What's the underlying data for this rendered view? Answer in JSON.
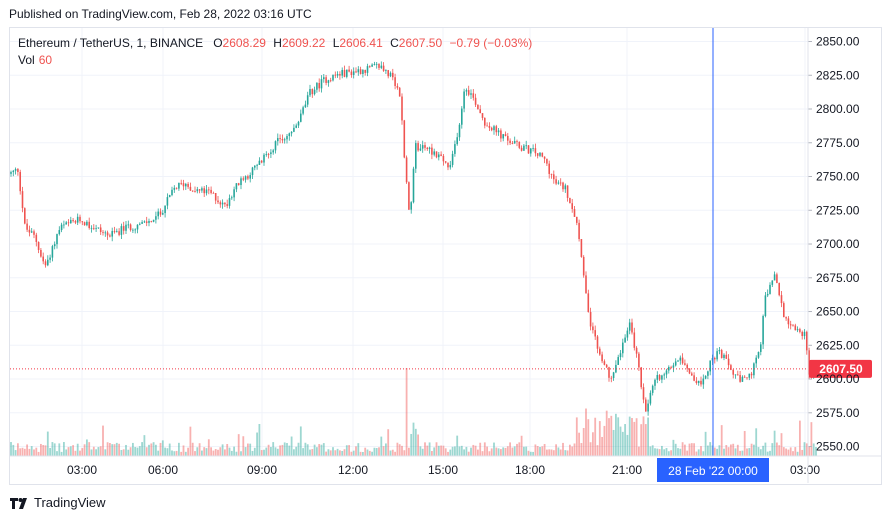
{
  "published": "Published on TradingView.com, Feb 28, 2022 03:16 UTC",
  "legend": {
    "symbol": "Ethereum / TetherUS, 1, BINANCE",
    "open_label": "O",
    "open": "2608.29",
    "high_label": "H",
    "high": "2609.22",
    "low_label": "L",
    "low": "2606.41",
    "close_label": "C",
    "close": "2607.50",
    "change": "−0.79 (−0.03%)",
    "vol_label": "Vol",
    "vol": "60"
  },
  "brand": {
    "name": "TradingView",
    "icon": "tradingview-logo-icon"
  },
  "colors": {
    "up": "#26a69a",
    "down": "#ef5350",
    "price_tag": "#f23645",
    "crosshair_tag": "#2962ff",
    "crosshair": "#2962ff"
  },
  "chart_data": {
    "type": "candlestick",
    "title": "",
    "xlabel": "",
    "ylabel": "",
    "y_ticks": [
      "2850.00",
      "2825.00",
      "2800.00",
      "2775.00",
      "2750.00",
      "2725.00",
      "2700.00",
      "2675.00",
      "2650.00",
      "2625.00",
      "2600.00",
      "2575.00",
      "2550.00"
    ],
    "ylim": [
      2543,
      2860
    ],
    "x_ticks": [
      "03:00",
      "06:00",
      "09:00",
      "12:00",
      "15:00",
      "18:00",
      "21:00",
      "03:00"
    ],
    "crosshair_label": "28 Feb '22   00:00",
    "last_price": 2607.5,
    "last_price_label": "2607.50",
    "grid": true,
    "anchors": [
      [
        0,
        2752
      ],
      [
        8,
        2755
      ],
      [
        15,
        2712
      ],
      [
        25,
        2705
      ],
      [
        35,
        2683
      ],
      [
        50,
        2712
      ],
      [
        70,
        2718
      ],
      [
        85,
        2712
      ],
      [
        100,
        2706
      ],
      [
        115,
        2712
      ],
      [
        135,
        2715
      ],
      [
        150,
        2722
      ],
      [
        165,
        2742
      ],
      [
        175,
        2745
      ],
      [
        185,
        2740
      ],
      [
        200,
        2738
      ],
      [
        215,
        2728
      ],
      [
        225,
        2742
      ],
      [
        250,
        2760
      ],
      [
        265,
        2774
      ],
      [
        285,
        2785
      ],
      [
        300,
        2812
      ],
      [
        315,
        2822
      ],
      [
        330,
        2826
      ],
      [
        345,
        2828
      ],
      [
        360,
        2830
      ],
      [
        370,
        2832
      ],
      [
        380,
        2825
      ],
      [
        390,
        2810
      ],
      [
        395,
        2760
      ],
      [
        400,
        2715
      ],
      [
        405,
        2772
      ],
      [
        415,
        2772
      ],
      [
        430,
        2765
      ],
      [
        440,
        2755
      ],
      [
        450,
        2792
      ],
      [
        455,
        2818
      ],
      [
        465,
        2806
      ],
      [
        475,
        2790
      ],
      [
        495,
        2778
      ],
      [
        510,
        2772
      ],
      [
        525,
        2768
      ],
      [
        535,
        2762
      ],
      [
        545,
        2745
      ],
      [
        555,
        2742
      ],
      [
        565,
        2722
      ],
      [
        575,
        2672
      ],
      [
        580,
        2640
      ],
      [
        590,
        2618
      ],
      [
        600,
        2600
      ],
      [
        612,
        2625
      ],
      [
        620,
        2640
      ],
      [
        628,
        2612
      ],
      [
        635,
        2575
      ],
      [
        645,
        2600
      ],
      [
        660,
        2608
      ],
      [
        670,
        2618
      ],
      [
        680,
        2605
      ],
      [
        690,
        2595
      ],
      [
        700,
        2612
      ],
      [
        710,
        2620
      ],
      [
        720,
        2608
      ],
      [
        730,
        2598
      ],
      [
        740,
        2602
      ],
      [
        750,
        2620
      ],
      [
        755,
        2660
      ],
      [
        765,
        2676
      ],
      [
        775,
        2645
      ],
      [
        785,
        2638
      ],
      [
        795,
        2632
      ],
      [
        800,
        2600
      ],
      [
        805,
        2608
      ],
      [
        810,
        2607.5
      ]
    ]
  }
}
